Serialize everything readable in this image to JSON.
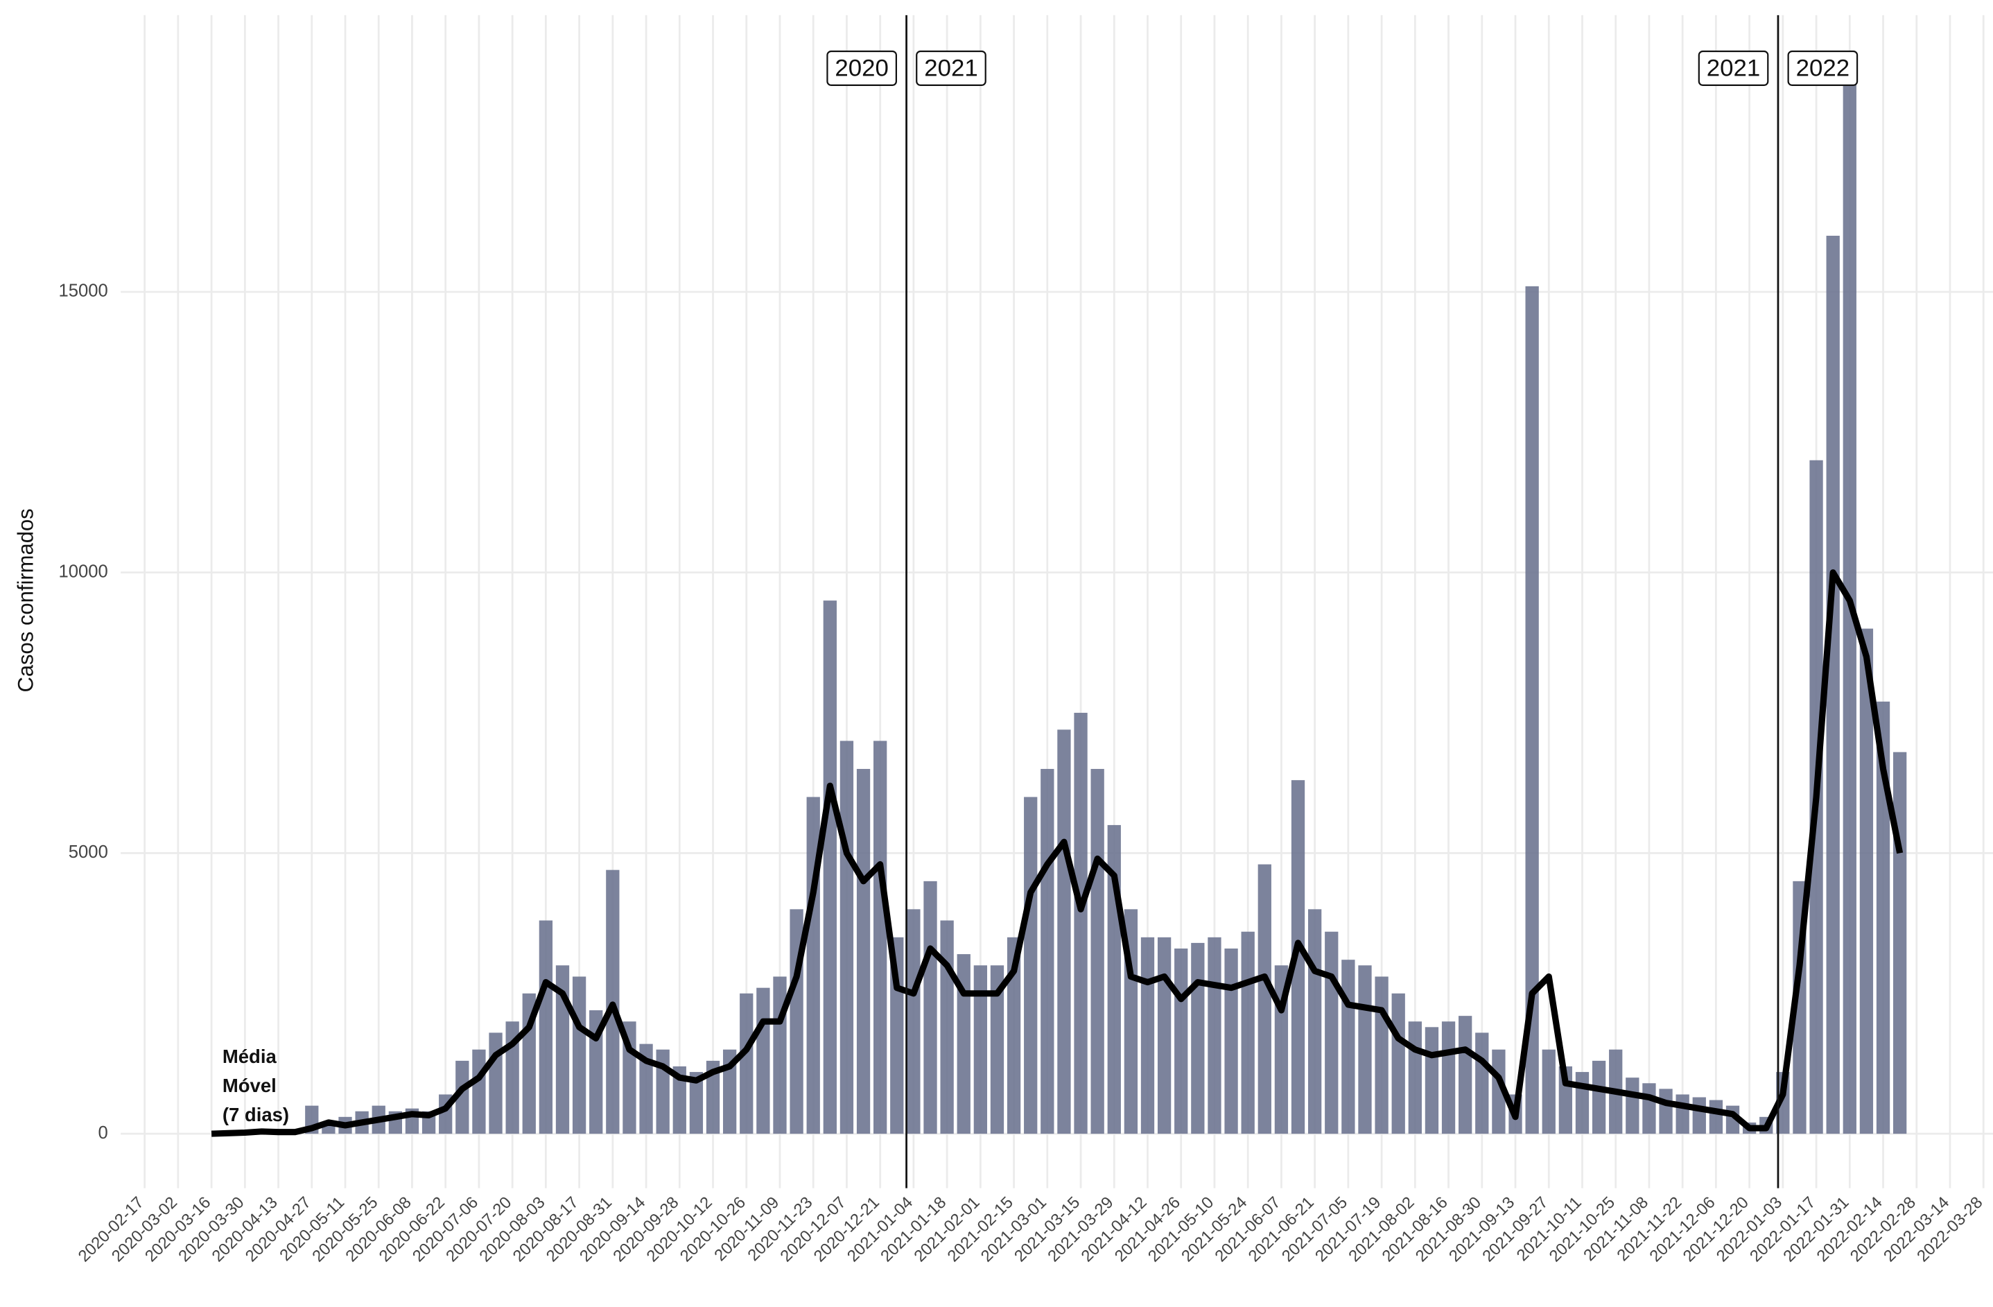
{
  "chart_data": {
    "type": "bar_line",
    "y_label": "Casos confirmados",
    "annotation": [
      "Média",
      "Móvel",
      "(7 dias)"
    ],
    "x": [
      "2020-03-16",
      "2020-03-23",
      "2020-03-30",
      "2020-04-06",
      "2020-04-13",
      "2020-04-20",
      "2020-04-27",
      "2020-05-04",
      "2020-05-11",
      "2020-05-18",
      "2020-05-25",
      "2020-06-01",
      "2020-06-08",
      "2020-06-15",
      "2020-06-22",
      "2020-06-29",
      "2020-07-06",
      "2020-07-13",
      "2020-07-20",
      "2020-07-27",
      "2020-08-03",
      "2020-08-10",
      "2020-08-17",
      "2020-08-24",
      "2020-08-31",
      "2020-09-07",
      "2020-09-14",
      "2020-09-21",
      "2020-09-28",
      "2020-10-05",
      "2020-10-12",
      "2020-10-19",
      "2020-10-26",
      "2020-11-02",
      "2020-11-09",
      "2020-11-16",
      "2020-11-23",
      "2020-11-30",
      "2020-12-07",
      "2020-12-14",
      "2020-12-21",
      "2020-12-28",
      "2021-01-04",
      "2021-01-11",
      "2021-01-18",
      "2021-01-25",
      "2021-02-01",
      "2021-02-08",
      "2021-02-15",
      "2021-02-22",
      "2021-03-01",
      "2021-03-08",
      "2021-03-15",
      "2021-03-22",
      "2021-03-29",
      "2021-04-05",
      "2021-04-12",
      "2021-04-19",
      "2021-04-26",
      "2021-05-03",
      "2021-05-10",
      "2021-05-17",
      "2021-05-24",
      "2021-05-31",
      "2021-06-07",
      "2021-06-14",
      "2021-06-21",
      "2021-06-28",
      "2021-07-05",
      "2021-07-12",
      "2021-07-19",
      "2021-07-26",
      "2021-08-02",
      "2021-08-09",
      "2021-08-16",
      "2021-08-23",
      "2021-08-30",
      "2021-09-06",
      "2021-09-13",
      "2021-09-20",
      "2021-09-27",
      "2021-10-04",
      "2021-10-11",
      "2021-10-18",
      "2021-10-25",
      "2021-11-01",
      "2021-11-08",
      "2021-11-15",
      "2021-11-22",
      "2021-11-29",
      "2021-12-06",
      "2021-12-13",
      "2021-12-20",
      "2021-12-27",
      "2022-01-03",
      "2022-01-10",
      "2022-01-17",
      "2022-01-24",
      "2022-01-31",
      "2022-02-07",
      "2022-02-14",
      "2022-02-21"
    ],
    "series": [
      {
        "type": "bar",
        "color": "#6e7591",
        "values": [
          0,
          20,
          30,
          50,
          40,
          50,
          500,
          200,
          300,
          400,
          500,
          400,
          450,
          400,
          700,
          1300,
          1500,
          1800,
          2000,
          2500,
          3800,
          3000,
          2800,
          2200,
          4700,
          2000,
          1600,
          1500,
          1200,
          1100,
          1300,
          1500,
          2500,
          2600,
          2800,
          4000,
          6000,
          9500,
          7000,
          6500,
          7000,
          3500,
          4000,
          4500,
          3800,
          3200,
          3000,
          3000,
          3500,
          6000,
          6500,
          7200,
          7500,
          6500,
          5500,
          4000,
          3500,
          3500,
          3300,
          3400,
          3500,
          3300,
          3600,
          4800,
          3000,
          6300,
          4000,
          3600,
          3100,
          3000,
          2800,
          2500,
          2000,
          1900,
          2000,
          2100,
          1800,
          1500,
          700,
          15100,
          1500,
          1200,
          1100,
          1300,
          1500,
          1000,
          900,
          800,
          700,
          650,
          600,
          500,
          200,
          300,
          1100,
          4500,
          12000,
          16000,
          18800,
          9000,
          7700,
          6800
        ]
      },
      {
        "type": "line",
        "color": "#000000",
        "values": [
          0,
          10,
          20,
          40,
          30,
          30,
          100,
          200,
          150,
          200,
          250,
          300,
          350,
          330,
          450,
          800,
          1000,
          1400,
          1600,
          1900,
          2700,
          2500,
          1900,
          1700,
          2300,
          1500,
          1300,
          1200,
          1000,
          950,
          1100,
          1200,
          1500,
          2000,
          2000,
          2800,
          4300,
          6200,
          5000,
          4500,
          4800,
          2600,
          2500,
          3300,
          3000,
          2500,
          2500,
          2500,
          2900,
          4300,
          4800,
          5200,
          4000,
          4900,
          4600,
          2800,
          2700,
          2800,
          2400,
          2700,
          2650,
          2600,
          2700,
          2800,
          2200,
          3400,
          2900,
          2800,
          2300,
          2250,
          2200,
          1700,
          1500,
          1400,
          1450,
          1500,
          1300,
          1000,
          300,
          2500,
          2800,
          900,
          850,
          800,
          750,
          700,
          650,
          550,
          500,
          450,
          400,
          350,
          100,
          100,
          700,
          3000,
          6000,
          10000,
          9500,
          8500,
          6500,
          5000
        ]
      }
    ],
    "vlines": [
      {
        "x": "2021-01-01",
        "labels": [
          "2020",
          "2021"
        ]
      },
      {
        "x": "2022-01-01",
        "labels": [
          "2021",
          "2022"
        ]
      }
    ],
    "xlim": [
      "2020-02-07",
      "2022-04-01"
    ],
    "xticks": [
      "2020-02-17",
      "2020-03-02",
      "2020-03-16",
      "2020-03-30",
      "2020-04-13",
      "2020-04-27",
      "2020-05-11",
      "2020-05-25",
      "2020-06-08",
      "2020-06-22",
      "2020-07-06",
      "2020-07-20",
      "2020-08-03",
      "2020-08-17",
      "2020-08-31",
      "2020-09-14",
      "2020-09-28",
      "2020-10-12",
      "2020-10-26",
      "2020-11-09",
      "2020-11-23",
      "2020-12-07",
      "2020-12-21",
      "2021-01-04",
      "2021-01-18",
      "2021-02-01",
      "2021-02-15",
      "2021-03-01",
      "2021-03-15",
      "2021-03-29",
      "2021-04-12",
      "2021-04-26",
      "2021-05-10",
      "2021-05-24",
      "2021-06-07",
      "2021-06-21",
      "2021-07-05",
      "2021-07-19",
      "2021-08-02",
      "2021-08-16",
      "2021-08-30",
      "2021-09-13",
      "2021-09-27",
      "2021-10-11",
      "2021-10-25",
      "2021-11-08",
      "2021-11-22",
      "2021-12-06",
      "2021-12-20",
      "2022-01-03",
      "2022-01-17",
      "2022-01-31",
      "2022-02-14",
      "2022-02-28",
      "2022-03-14",
      "2022-03-28"
    ],
    "ylim": [
      -970,
      19930
    ],
    "yticks": [
      0,
      5000,
      10000,
      15000
    ],
    "grid": true
  }
}
